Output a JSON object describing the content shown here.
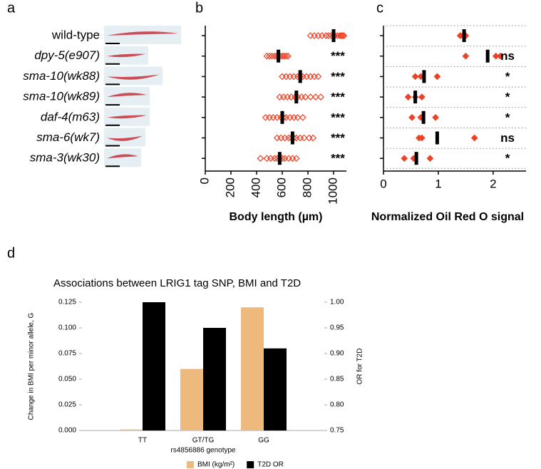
{
  "panel_labels": [
    "a",
    "b",
    "c",
    "d"
  ],
  "chart_data": [
    {
      "type": "strip",
      "xlabel": "Body length (µm)",
      "categories": [
        "wild-type",
        "dpy-5(e907)",
        "sma-10(wk88)",
        "sma-10(wk89)",
        "daf-4(m63)",
        "sma-6(wk7)",
        "sma-3(wk30)"
      ],
      "values": [
        1000,
        570,
        740,
        710,
        600,
        680,
        580
      ],
      "points": [
        [
          820,
          850,
          880,
          910,
          940,
          960,
          980,
          1000,
          1010,
          1030,
          1050,
          1060,
          1070,
          1080
        ],
        [
          480,
          500,
          520,
          540,
          555,
          570,
          585,
          600,
          615,
          630,
          645
        ],
        [
          600,
          630,
          660,
          690,
          720,
          740,
          760,
          790,
          820,
          850,
          880
        ],
        [
          580,
          610,
          640,
          670,
          700,
          720,
          750,
          780,
          820,
          860,
          900
        ],
        [
          470,
          500,
          530,
          560,
          590,
          610,
          630,
          660,
          690,
          720,
          760
        ],
        [
          560,
          590,
          620,
          650,
          670,
          690,
          710,
          740,
          770,
          810,
          840
        ],
        [
          430,
          480,
          510,
          540,
          560,
          580,
          600,
          620,
          650,
          680,
          710
        ]
      ],
      "significance": [
        null,
        "***",
        "***",
        "***",
        "***",
        "***",
        "***"
      ],
      "marker": "open-diamond",
      "color": "#ee4125",
      "xlim": [
        0,
        1100
      ],
      "xticks": [
        0,
        200,
        400,
        600,
        800,
        1000
      ]
    },
    {
      "type": "strip",
      "xlabel": "Normalized Oil Red O signal",
      "values": [
        1.47,
        1.9,
        0.74,
        0.58,
        0.73,
        0.98,
        0.6
      ],
      "points": [
        [
          1.4,
          1.45,
          1.5
        ],
        [
          1.5,
          2.05,
          2.13
        ],
        [
          0.58,
          0.68,
          0.98
        ],
        [
          0.45,
          0.58,
          0.7
        ],
        [
          0.52,
          0.68,
          0.95
        ],
        [
          0.65,
          0.7,
          1.66
        ],
        [
          0.38,
          0.55,
          0.85
        ]
      ],
      "significance": [
        null,
        "ns",
        "*",
        "*",
        "*",
        "ns",
        "*"
      ],
      "marker": "diamond",
      "color": "#ee4125",
      "grid": true,
      "xlim": [
        0,
        2.6
      ],
      "xticks": [
        0,
        1,
        2
      ]
    },
    {
      "type": "bar",
      "title": "Associations between LRIG1 tag SNP, BMI and T2D",
      "xlabel": "rs4856886 genotype",
      "ylabel": "Change in BMI per minor allele, G",
      "y2label": "OR for T2D",
      "categories": [
        "TT",
        "GT/TG",
        "GG"
      ],
      "series": [
        {
          "name": "BMI (kg/m²)",
          "color": "#eeb97c",
          "values": [
            0.001,
            0.06,
            0.12
          ]
        },
        {
          "name": "T2D OR",
          "color": "#000000",
          "axis": "y2",
          "values": [
            1.0,
            0.95,
            0.91
          ]
        }
      ],
      "ylim": [
        0,
        0.125
      ],
      "yticks": [
        {
          "value": 0,
          "label": "0.000"
        },
        0.025,
        {
          "value": 0.05,
          "label": "0.050"
        },
        0.075,
        {
          "value": 0.1,
          "label": "0.100"
        },
        0.125
      ],
      "y2lim": [
        0.75,
        1.0
      ],
      "y2ticks": [
        0.75,
        {
          "value": 0.8,
          "label": "0.80"
        },
        0.85,
        {
          "value": 0.9,
          "label": "0.90"
        },
        0.95,
        {
          "value": 1.0,
          "label": "1.00"
        }
      ]
    }
  ]
}
